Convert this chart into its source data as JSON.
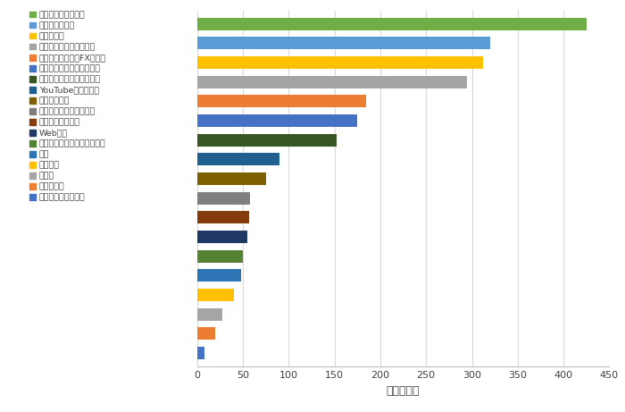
{
  "categories": [
    "アンケートモニター",
    "ポイントサイト",
    "データ入力",
    "記事のライティング業務",
    "投資（株式投資・FXなど）",
    "アフィリエイト（ブログ）",
    "フリマアプリで不用品販売",
    "YouTubeで動画配信",
    "せどり・転売",
    "イラスト・デザイン制作",
    "ハンドメイド販売",
    "Web制作",
    "スキルシェア（スキル販売）",
    "翻訳",
    "写真販売",
    "その他",
    "ライブ配信",
    "とくに考えていない"
  ],
  "values": [
    425,
    320,
    312,
    295,
    185,
    175,
    152,
    90,
    75,
    58,
    57,
    55,
    50,
    48,
    40,
    28,
    20,
    8
  ],
  "colors": [
    "#70AD47",
    "#5B9BD5",
    "#FFC000",
    "#A5A5A5",
    "#ED7D31",
    "#4472C4",
    "#375623",
    "#1F6091",
    "#7F6000",
    "#7F7F7F",
    "#843C0C",
    "#1F3864",
    "#548235",
    "#2E75B6",
    "#FFC000",
    "#A5A5A5",
    "#ED7D31",
    "#4472C4"
  ],
  "legend_square_colors": [
    "#70AD47",
    "#5B9BD5",
    "#FFC000",
    "#A5A5A5",
    "#ED7D31",
    "#4472C4",
    "#375623",
    "#1F6091",
    "#7F6000",
    "#7F7F7F",
    "#843C0C",
    "#1F3864",
    "#548235",
    "#2E75B6",
    "#FFC000",
    "#A5A5A5",
    "#ED7D31",
    "#4472C4"
  ],
  "xlabel": "（回答数）",
  "xlim": [
    0,
    450
  ],
  "xticks": [
    0,
    50,
    100,
    150,
    200,
    250,
    300,
    350,
    400,
    450
  ],
  "background_color": "#FFFFFF",
  "grid_color": "#D9D9D9",
  "bar_height": 0.65
}
